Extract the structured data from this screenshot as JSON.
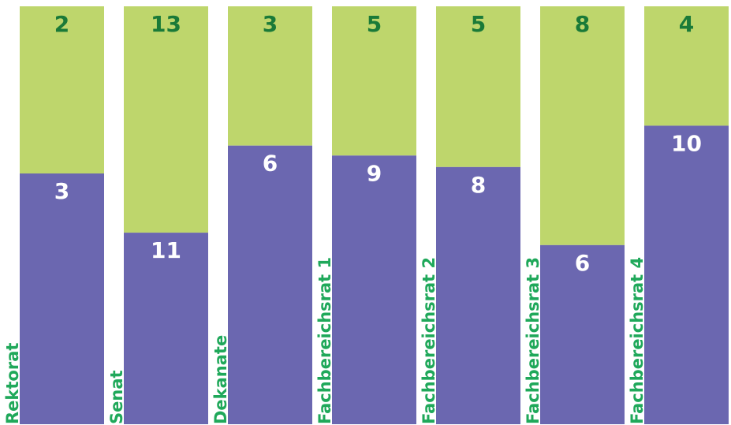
{
  "colors": {
    "lower": "#6b67b0",
    "upper": "#bed66c",
    "upper_label": "#1a7a38",
    "lower_label": "#ffffff",
    "category_label": "#1fa85a"
  },
  "chart_data": {
    "type": "bar",
    "stacked": true,
    "normalized": true,
    "categories": [
      "Rektorat",
      "Senat",
      "Dekanate",
      "Fachbereichsrat 1",
      "Fachbereichsrat 2",
      "Fachbereichsrat 3",
      "Fachbereichsrat 4"
    ],
    "series": [
      {
        "values": [
          3,
          11,
          6,
          9,
          8,
          6,
          10
        ]
      },
      {
        "values": [
          2,
          13,
          3,
          5,
          5,
          8,
          4
        ]
      }
    ],
    "title": "",
    "xlabel": "",
    "ylabel": "",
    "grid": false,
    "legend": "none"
  }
}
